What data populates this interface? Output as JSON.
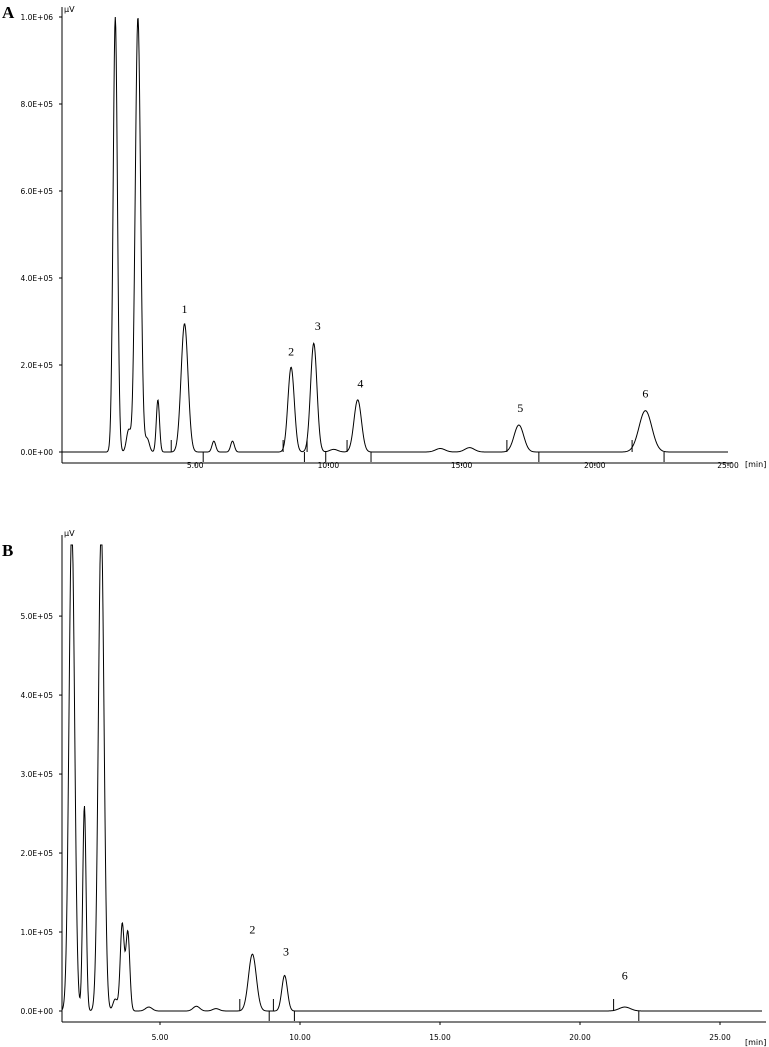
{
  "chart_data": [
    {
      "panel": "A",
      "type": "line",
      "ylabel": "µV",
      "xlabel": "[min]",
      "ylim": [
        0,
        1000000
      ],
      "xlim": [
        0,
        25
      ],
      "y_ticks": [
        "0.0E+00",
        "2.0E+05",
        "4.0E+05",
        "6.0E+05",
        "8.0E+05",
        "1.0E+06"
      ],
      "y_tick_values": [
        0,
        200000,
        400000,
        600000,
        800000,
        1000000
      ],
      "x_ticks": [
        "5.00",
        "10.00",
        "15.00",
        "20.00",
        "25.00"
      ],
      "x_tick_values": [
        5,
        10,
        15,
        20,
        25
      ],
      "peaks": [
        {
          "t": 2.0,
          "h": 1000000,
          "w": 0.08
        },
        {
          "t": 2.5,
          "h": 50000,
          "w": 0.08
        },
        {
          "t": 2.85,
          "h": 1000000,
          "w": 0.1
        },
        {
          "t": 3.2,
          "h": 30000,
          "w": 0.08
        },
        {
          "t": 3.6,
          "h": 120000,
          "w": 0.06
        },
        {
          "t": 4.6,
          "h": 295000,
          "w": 0.13
        },
        {
          "t": 5.7,
          "h": 25000,
          "w": 0.07
        },
        {
          "t": 6.4,
          "h": 25000,
          "w": 0.07
        },
        {
          "t": 8.6,
          "h": 195000,
          "w": 0.12
        },
        {
          "t": 9.45,
          "h": 250000,
          "w": 0.12
        },
        {
          "t": 10.2,
          "h": 6000,
          "w": 0.15
        },
        {
          "t": 11.1,
          "h": 120000,
          "w": 0.14
        },
        {
          "t": 14.2,
          "h": 8000,
          "w": 0.18
        },
        {
          "t": 15.3,
          "h": 10000,
          "w": 0.18
        },
        {
          "t": 17.15,
          "h": 62000,
          "w": 0.18
        },
        {
          "t": 21.9,
          "h": 95000,
          "w": 0.24
        }
      ],
      "peak_labels": [
        {
          "text": "1",
          "t": 4.6,
          "y": 320000
        },
        {
          "text": "2",
          "t": 8.6,
          "y": 222000
        },
        {
          "text": "3",
          "t": 9.6,
          "y": 280000
        },
        {
          "text": "4",
          "t": 11.2,
          "y": 148000
        },
        {
          "text": "5",
          "t": 17.2,
          "y": 92000
        },
        {
          "text": "6",
          "t": 21.9,
          "y": 125000
        }
      ],
      "integration_marks": [
        4.1,
        5.3,
        8.3,
        9.1,
        9.2,
        9.9,
        10.7,
        11.6,
        16.7,
        17.9,
        21.4,
        22.6
      ]
    },
    {
      "panel": "B",
      "type": "line",
      "ylabel": "µV",
      "xlabel": "[min]",
      "ylim": [
        0,
        590000
      ],
      "xlim": [
        1.5,
        26.5
      ],
      "y_ticks": [
        "0.0E+00",
        "1.0E+05",
        "2.0E+05",
        "3.0E+05",
        "4.0E+05",
        "5.0E+05"
      ],
      "y_tick_values": [
        0,
        100000,
        200000,
        300000,
        400000,
        500000
      ],
      "x_ticks": [
        "5.00",
        "10.00",
        "15.00",
        "20.00",
        "25.00"
      ],
      "x_tick_values": [
        5,
        10,
        15,
        20,
        25
      ],
      "peaks": [
        {
          "t": 1.85,
          "h": 620000,
          "w": 0.1
        },
        {
          "t": 2.3,
          "h": 260000,
          "w": 0.06
        },
        {
          "t": 2.9,
          "h": 620000,
          "w": 0.1
        },
        {
          "t": 3.4,
          "h": 15000,
          "w": 0.08
        },
        {
          "t": 3.65,
          "h": 110000,
          "w": 0.07
        },
        {
          "t": 3.85,
          "h": 100000,
          "w": 0.07
        },
        {
          "t": 4.6,
          "h": 5000,
          "w": 0.12
        },
        {
          "t": 6.3,
          "h": 6000,
          "w": 0.12
        },
        {
          "t": 7.0,
          "h": 3000,
          "w": 0.12
        },
        {
          "t": 8.3,
          "h": 72000,
          "w": 0.14
        },
        {
          "t": 9.45,
          "h": 45000,
          "w": 0.1
        },
        {
          "t": 21.6,
          "h": 5000,
          "w": 0.2
        }
      ],
      "peak_labels": [
        {
          "text": "2",
          "t": 8.3,
          "y": 98000
        },
        {
          "text": "3",
          "t": 9.5,
          "y": 70000
        },
        {
          "text": "6",
          "t": 21.6,
          "y": 40000
        }
      ],
      "integration_marks": [
        7.85,
        8.9,
        9.05,
        9.8,
        21.2,
        22.1
      ]
    }
  ]
}
